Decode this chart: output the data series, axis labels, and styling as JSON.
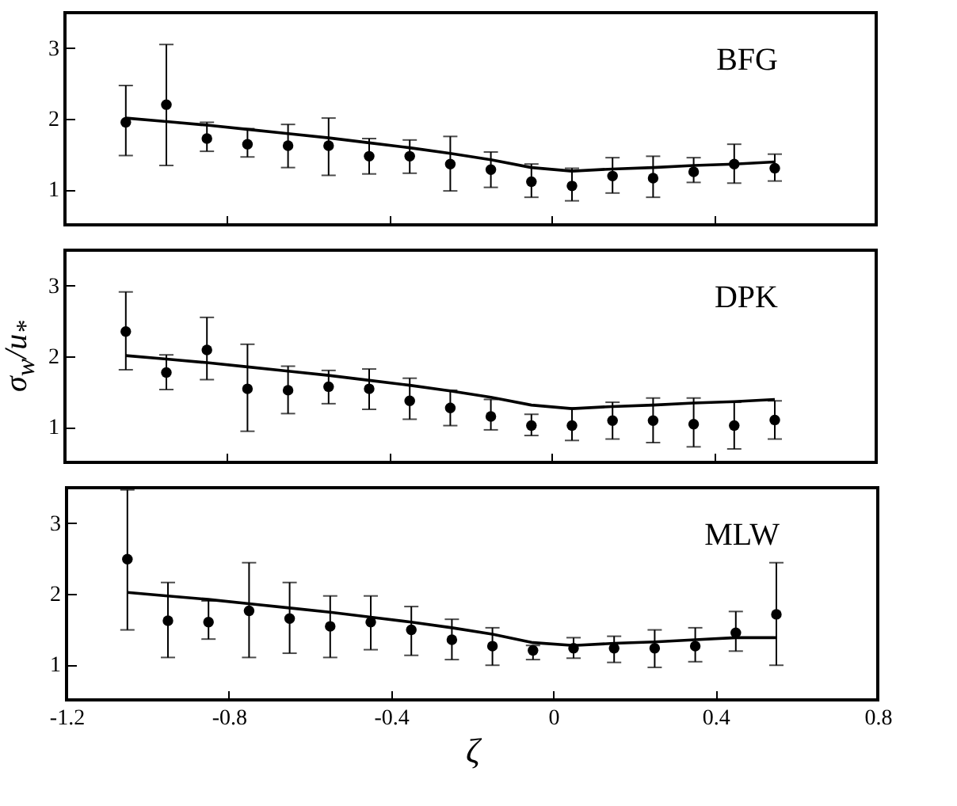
{
  "chart_data": [
    {
      "type": "scatter",
      "annotations": [
        "BFG"
      ],
      "xlim": [
        -1.2,
        0.8
      ],
      "xticks": [
        -1.2,
        -0.8,
        -0.4,
        0,
        0.4,
        0.8
      ],
      "ylim": [
        0.5,
        3.5
      ],
      "yticks": [
        1,
        2,
        3
      ],
      "tick_labels": "y",
      "x": [
        -1.05,
        -0.95,
        -0.85,
        -0.75,
        -0.65,
        -0.55,
        -0.45,
        -0.35,
        -0.25,
        -0.15,
        -0.05,
        0.05,
        0.15,
        0.25,
        0.35,
        0.45,
        0.55
      ],
      "series": [
        {
          "color": "#000000",
          "marker": "circle",
          "values": [
            1.95,
            2.2,
            1.72,
            1.64,
            1.62,
            1.62,
            1.47,
            1.47,
            1.36,
            1.28,
            1.11,
            1.05,
            1.19,
            1.16,
            1.25,
            1.36,
            1.3
          ],
          "errors": [
            [
              1.48,
              2.47
            ],
            [
              1.34,
              3.05
            ],
            [
              1.54,
              1.95
            ],
            [
              1.46,
              1.86
            ],
            [
              1.31,
              1.92
            ],
            [
              1.2,
              2.01
            ],
            [
              1.22,
              1.72
            ],
            [
              1.23,
              1.7
            ],
            [
              0.98,
              1.75
            ],
            [
              1.03,
              1.53
            ],
            [
              0.89,
              1.36
            ],
            [
              0.84,
              1.3
            ],
            [
              0.95,
              1.45
            ],
            [
              0.89,
              1.47
            ],
            [
              1.1,
              1.45
            ],
            [
              1.09,
              1.64
            ],
            [
              1.12,
              1.5
            ]
          ]
        },
        {
          "type": "line",
          "color": "#000000",
          "line_style": "solid",
          "values": [
            2.01,
            1.96,
            1.91,
            1.85,
            1.79,
            1.73,
            1.66,
            1.59,
            1.51,
            1.42,
            1.31,
            1.26,
            1.29,
            1.31,
            1.34,
            1.36,
            1.39
          ]
        }
      ]
    },
    {
      "type": "scatter",
      "ylabel": "σ$_{w}$/u$_{*}$",
      "annotations": [
        "DPK"
      ],
      "xlim": [
        -1.2,
        0.8
      ],
      "xticks": [
        -1.2,
        -0.8,
        -0.4,
        0,
        0.4,
        0.8
      ],
      "ylim": [
        0.5,
        3.5
      ],
      "yticks": [
        1,
        2,
        3
      ],
      "tick_labels": "y",
      "x": [
        -1.05,
        -0.95,
        -0.85,
        -0.75,
        -0.65,
        -0.55,
        -0.45,
        -0.35,
        -0.25,
        -0.15,
        -0.05,
        0.05,
        0.15,
        0.25,
        0.35,
        0.45,
        0.55
      ],
      "series": [
        {
          "color": "#000000",
          "marker": "circle",
          "values": [
            2.35,
            1.77,
            2.09,
            1.54,
            1.52,
            1.57,
            1.54,
            1.37,
            1.27,
            1.15,
            1.02,
            1.02,
            1.09,
            1.09,
            1.04,
            1.02,
            1.1
          ],
          "errors": [
            [
              1.81,
              2.91
            ],
            [
              1.53,
              2.02
            ],
            [
              1.67,
              2.55
            ],
            [
              0.94,
              2.17
            ],
            [
              1.19,
              1.86
            ],
            [
              1.33,
              1.8
            ],
            [
              1.25,
              1.82
            ],
            [
              1.11,
              1.69
            ],
            [
              1.02,
              1.52
            ],
            [
              0.96,
              1.39
            ],
            [
              0.88,
              1.18
            ],
            [
              0.81,
              1.27
            ],
            [
              0.83,
              1.35
            ],
            [
              0.78,
              1.41
            ],
            [
              0.72,
              1.41
            ],
            [
              0.69,
              1.35
            ],
            [
              0.83,
              1.37
            ]
          ]
        },
        {
          "type": "line",
          "color": "#000000",
          "line_style": "solid",
          "values": [
            2.01,
            1.96,
            1.91,
            1.85,
            1.79,
            1.73,
            1.66,
            1.59,
            1.51,
            1.42,
            1.31,
            1.26,
            1.29,
            1.31,
            1.34,
            1.36,
            1.39
          ]
        }
      ]
    },
    {
      "type": "scatter",
      "xlabel": "ζ",
      "annotations": [
        "MLW"
      ],
      "xlim": [
        -1.2,
        0.8
      ],
      "xticks": [
        -1.2,
        -0.8,
        -0.4,
        0,
        0.4,
        0.8
      ],
      "ylim": [
        0.5,
        3.5
      ],
      "yticks": [
        1,
        2,
        3
      ],
      "x": [
        -1.05,
        -0.95,
        -0.85,
        -0.75,
        -0.65,
        -0.55,
        -0.45,
        -0.35,
        -0.25,
        -0.15,
        -0.05,
        0.05,
        0.15,
        0.25,
        0.35,
        0.45,
        0.55
      ],
      "series": [
        {
          "color": "#000000",
          "marker": "circle",
          "values": [
            2.49,
            1.62,
            1.6,
            1.76,
            1.65,
            1.54,
            1.6,
            1.49,
            1.35,
            1.26,
            1.2,
            1.23,
            1.23,
            1.23,
            1.26,
            1.45,
            1.71
          ],
          "errors": [
            [
              1.49,
              3.47
            ],
            [
              1.1,
              2.16
            ],
            [
              1.36,
              1.9
            ],
            [
              1.1,
              2.44
            ],
            [
              1.16,
              2.16
            ],
            [
              1.1,
              1.97
            ],
            [
              1.21,
              1.97
            ],
            [
              1.13,
              1.82
            ],
            [
              1.07,
              1.64
            ],
            [
              0.99,
              1.52
            ],
            [
              1.07,
              1.27
            ],
            [
              1.09,
              1.38
            ],
            [
              1.03,
              1.4
            ],
            [
              0.96,
              1.49
            ],
            [
              1.04,
              1.52
            ],
            [
              1.19,
              1.75
            ],
            [
              0.99,
              2.44
            ]
          ]
        },
        {
          "type": "line",
          "color": "#000000",
          "line_style": "solid",
          "values": [
            2.02,
            1.97,
            1.92,
            1.86,
            1.8,
            1.74,
            1.67,
            1.6,
            1.52,
            1.43,
            1.31,
            1.27,
            1.3,
            1.32,
            1.35,
            1.38,
            1.38
          ]
        }
      ]
    }
  ]
}
